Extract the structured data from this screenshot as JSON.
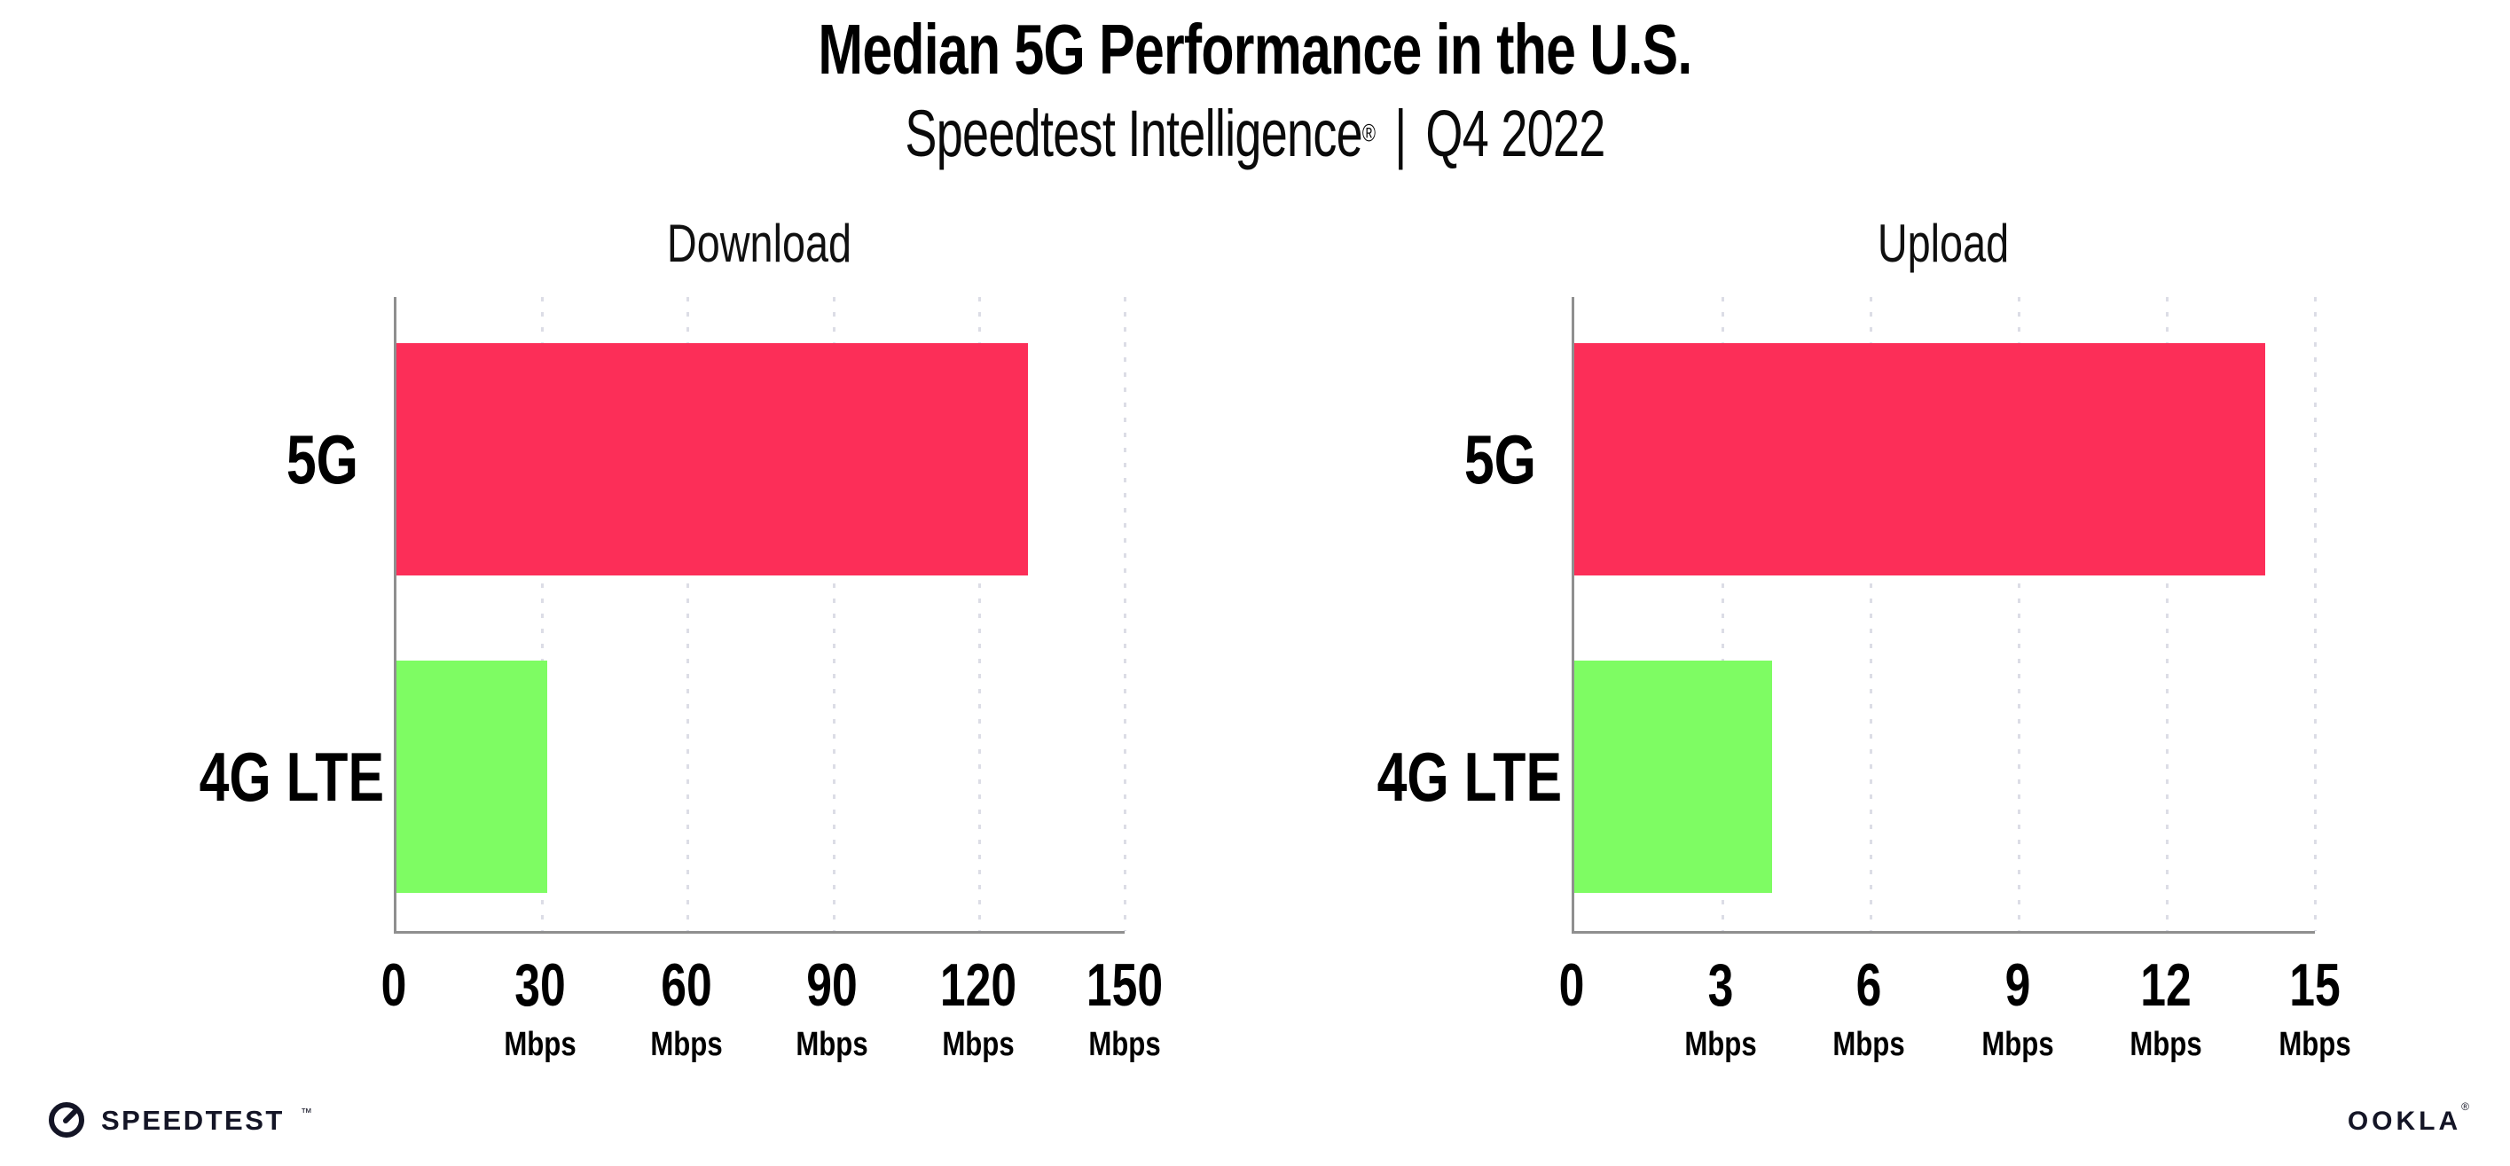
{
  "page": {
    "title": "Median 5G Performance in the U.S.",
    "subtitle_brand": "Speedtest Intelligence",
    "subtitle_reg": "®",
    "subtitle_sep": "|",
    "subtitle_period": "Q4 2022"
  },
  "footer": {
    "speedtest_text": "SPEEDTEST",
    "speedtest_mark": "™",
    "ookla_text": "OOKLA",
    "ookla_mark": "®"
  },
  "colors": {
    "bar_5g": "#FC2E58",
    "bar_4g": "#7EFC63",
    "axis": "#8F8F8F",
    "gridline": "#DCDDE6",
    "logo": "#141526"
  },
  "chart_data": [
    {
      "type": "bar",
      "orientation": "horizontal",
      "title": "Download",
      "categories": [
        "5G",
        "4G LTE"
      ],
      "values": [
        130,
        31
      ],
      "unit": "Mbps",
      "xlim": [
        0,
        150
      ],
      "xticks": [
        0,
        30,
        60,
        90,
        120,
        150
      ],
      "xtick_unit": "Mbps",
      "unit_shown_on_zero_tick": false,
      "grid": "dotted vertical gridlines at each tick",
      "legend": "none",
      "bar_colors": [
        "#FC2E58",
        "#7EFC63"
      ]
    },
    {
      "type": "bar",
      "orientation": "horizontal",
      "title": "Upload",
      "categories": [
        "5G",
        "4G LTE"
      ],
      "values": [
        14,
        4
      ],
      "unit": "Mbps",
      "xlim": [
        0,
        15
      ],
      "xticks": [
        0,
        3,
        6,
        9,
        12,
        15
      ],
      "xtick_unit": "Mbps",
      "unit_shown_on_zero_tick": false,
      "grid": "dotted vertical gridlines at each tick",
      "legend": "none",
      "bar_colors": [
        "#FC2E58",
        "#7EFC63"
      ]
    }
  ]
}
